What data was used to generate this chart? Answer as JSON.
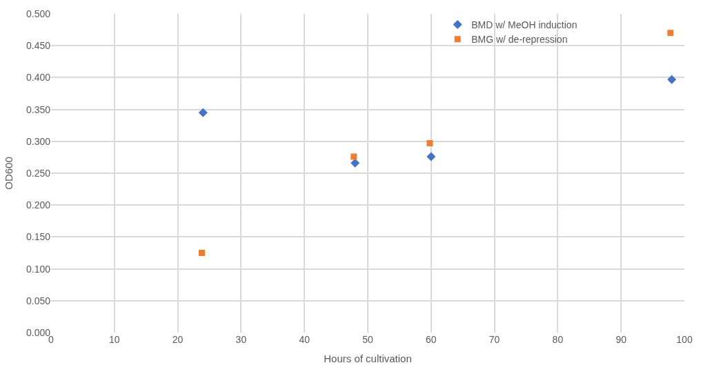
{
  "chart_data": {
    "type": "scatter",
    "xlabel": "Hours of cultivation",
    "ylabel": "OD600",
    "series": [
      {
        "name": "BMD w/ MeOH induction",
        "color": "#4472c4",
        "marker": "diamond",
        "x": [
          24,
          48,
          60,
          98
        ],
        "values": [
          0.345,
          0.266,
          0.276,
          0.397
        ]
      },
      {
        "name": "BMG w/ de-repression",
        "color": "#ed7d31",
        "marker": "square",
        "x": [
          23.8,
          47.8,
          59.8,
          97.8
        ],
        "values": [
          0.125,
          0.276,
          0.297,
          0.47
        ]
      }
    ],
    "xlim": [
      0,
      100
    ],
    "xticks": [
      0,
      10,
      20,
      30,
      40,
      50,
      60,
      70,
      80,
      90,
      100
    ],
    "ylim": [
      0,
      0.5
    ],
    "yticks": [
      {
        "value": 0,
        "label": "0.000"
      },
      {
        "value": 0.05,
        "label": "0.050"
      },
      {
        "value": 0.1,
        "label": "0.100"
      },
      {
        "value": 0.15,
        "label": "0.150"
      },
      {
        "value": 0.2,
        "label": "0.200"
      },
      {
        "value": 0.25,
        "label": "0.250"
      },
      {
        "value": 0.3,
        "label": "0.300"
      },
      {
        "value": 0.35,
        "label": "0.350"
      },
      {
        "value": 0.4,
        "label": "0.400"
      },
      {
        "value": 0.45,
        "label": "0.450"
      },
      {
        "value": 0.5,
        "label": "0.500"
      }
    ],
    "grid": true,
    "legend": "top right"
  }
}
